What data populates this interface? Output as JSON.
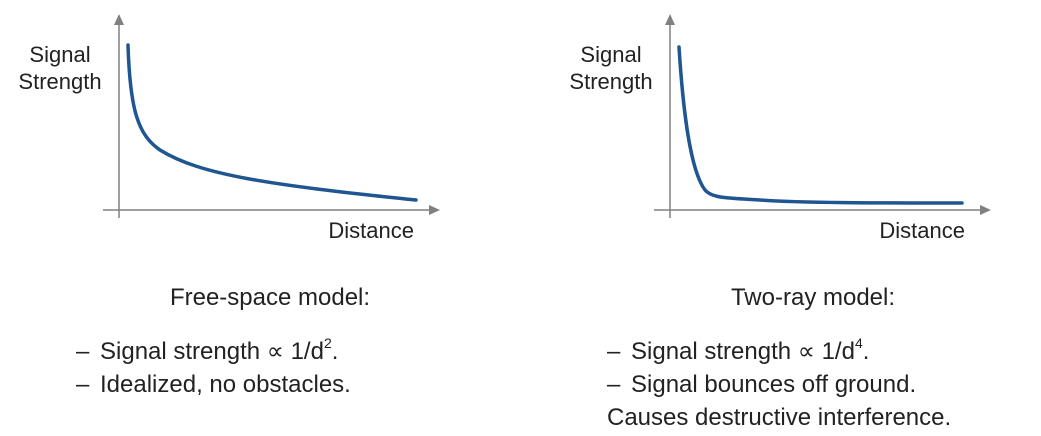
{
  "colors": {
    "curve": "#1f5591",
    "axis": "#808080",
    "text": "#222222"
  },
  "panels": [
    {
      "chart": {
        "ylabel_line1": "Signal",
        "ylabel_line2": "Strength",
        "xlabel": "Distance",
        "curve_shape": "inverse-square decay"
      },
      "title": "Free-space model:",
      "bullets": [
        {
          "dash": "–",
          "text": "Signal strength ∝ 1/d",
          "sup": "2",
          "after": "."
        },
        {
          "dash": "–",
          "text": "Idealized, no obstacles.",
          "sup": "",
          "after": ""
        }
      ],
      "continuation": ""
    },
    {
      "chart": {
        "ylabel_line1": "Signal",
        "ylabel_line2": "Strength",
        "xlabel": "Distance",
        "curve_shape": "inverse-fourth-power decay"
      },
      "title": "Two-ray model:",
      "bullets": [
        {
          "dash": "–",
          "text": "Signal strength ∝ 1/d",
          "sup": "4",
          "after": "."
        },
        {
          "dash": "–",
          "text": "Signal bounces off ground.",
          "sup": "",
          "after": ""
        }
      ],
      "continuation": "Causes destructive interference."
    }
  ]
}
